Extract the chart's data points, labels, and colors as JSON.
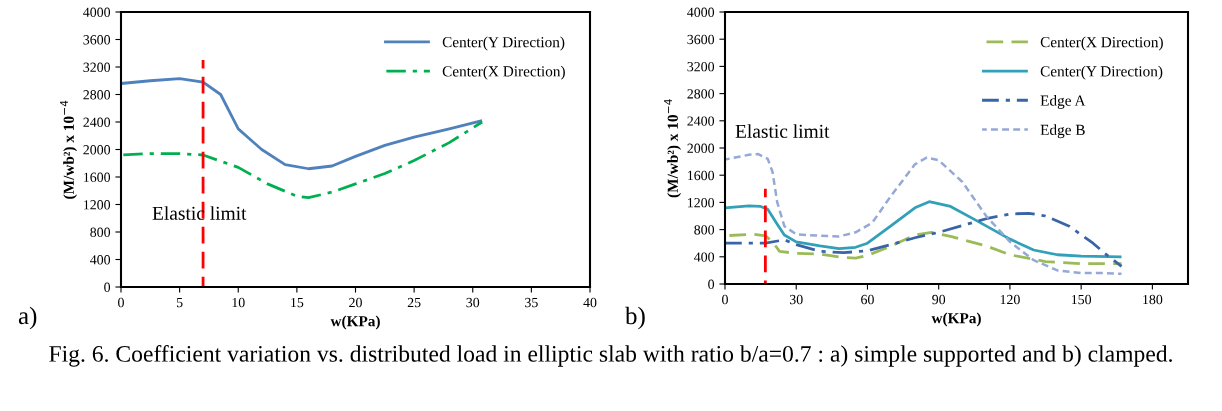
{
  "chart_data": [
    {
      "type": "line",
      "xlabel": "w(KPa)",
      "ylabel": "(M/wb²) x 10$^{−4}$",
      "xlim": [
        0,
        40
      ],
      "xticks": [
        0,
        5,
        10,
        15,
        20,
        25,
        30,
        35,
        40
      ],
      "ylim": [
        0,
        4000
      ],
      "yticks": [
        0,
        400,
        800,
        1200,
        1600,
        2000,
        2400,
        2800,
        3200,
        3600,
        4000
      ],
      "grid": false,
      "legend": "top right",
      "series": [
        {
          "name": "Center(Y Direction)",
          "color": "#4f81bd",
          "line_style": "solid",
          "x": [
            0,
            2.5,
            5,
            7,
            8.5,
            10,
            12,
            14,
            16,
            18,
            20,
            22.5,
            25,
            28,
            30.8
          ],
          "values": [
            2960,
            3000,
            3030,
            2980,
            2800,
            2300,
            2000,
            1780,
            1720,
            1760,
            1900,
            2060,
            2180,
            2300,
            2420
          ]
        },
        {
          "name": "Center(X Direction)",
          "color": "#00b050",
          "line_style": "dashdot",
          "x": [
            0,
            2.5,
            5,
            7,
            10,
            12.5,
            15,
            16,
            18,
            20,
            22.5,
            25,
            28,
            30.8
          ],
          "values": [
            1920,
            1940,
            1940,
            1920,
            1740,
            1500,
            1320,
            1300,
            1380,
            1500,
            1650,
            1840,
            2100,
            2400
          ]
        },
        {
          "color": "#ff0000",
          "line_style": "dashed",
          "x": [
            7,
            7
          ],
          "values": [
            0,
            3300
          ]
        }
      ],
      "annotations": [
        "Elastic limit",
        "a)"
      ]
    },
    {
      "type": "line",
      "xlabel": "w(KPa)",
      "ylabel": "(M/wb²) x 10$^{−4}$",
      "xlim": [
        0,
        195
      ],
      "xticks": [
        0,
        30,
        60,
        90,
        120,
        150,
        180
      ],
      "ylim": [
        0,
        4000
      ],
      "yticks": [
        0,
        400,
        800,
        1200,
        1600,
        2000,
        2400,
        2800,
        3200,
        3600,
        4000
      ],
      "grid": false,
      "legend": "top right",
      "series": [
        {
          "name": "Center(X Direction)",
          "color": "#9bbb59",
          "line_style": "dashed",
          "x": [
            0,
            12,
            17,
            20,
            23,
            30,
            40,
            50,
            55,
            60,
            70,
            80,
            87,
            95,
            110,
            120,
            135,
            150,
            167
          ],
          "values": [
            710,
            730,
            710,
            620,
            480,
            450,
            440,
            390,
            380,
            420,
            560,
            720,
            760,
            700,
            560,
            430,
            330,
            300,
            300
          ]
        },
        {
          "name": "Center(Y Direction)",
          "color": "#31a0b8",
          "line_style": "solid",
          "x": [
            0,
            10,
            15,
            18,
            22,
            25,
            30,
            40,
            48,
            55,
            60,
            70,
            80,
            86,
            95,
            105,
            120,
            130,
            140,
            150,
            167
          ],
          "values": [
            1120,
            1150,
            1140,
            1100,
            880,
            720,
            620,
            560,
            520,
            540,
            600,
            860,
            1120,
            1210,
            1140,
            950,
            660,
            500,
            430,
            410,
            400
          ]
        },
        {
          "name": "Edge A",
          "color": "#3a64a8",
          "line_style": "dashdot",
          "x": [
            0,
            10,
            17,
            25,
            30,
            40,
            50,
            60,
            70,
            80,
            90,
            100,
            110,
            120,
            128,
            135,
            145,
            155,
            160,
            167
          ],
          "values": [
            600,
            600,
            600,
            650,
            580,
            480,
            460,
            490,
            580,
            680,
            760,
            860,
            960,
            1030,
            1040,
            1000,
            850,
            600,
            450,
            260
          ]
        },
        {
          "name": "Edge B",
          "color": "#95a9d6",
          "line_style": "dotted",
          "x": [
            0,
            10,
            14,
            18,
            20,
            22,
            25,
            30,
            40,
            48,
            55,
            62,
            70,
            80,
            85,
            90,
            100,
            110,
            120,
            130,
            140,
            150,
            160,
            167
          ],
          "values": [
            1830,
            1900,
            1910,
            1840,
            1650,
            1200,
            850,
            730,
            710,
            700,
            760,
            900,
            1300,
            1760,
            1860,
            1820,
            1500,
            1000,
            620,
            350,
            200,
            160,
            160,
            150
          ]
        },
        {
          "color": "#ff0000",
          "line_style": "dashed",
          "x": [
            17,
            17
          ],
          "values": [
            0,
            1400
          ]
        }
      ],
      "annotations": [
        "Elastic limit",
        "b)",
        "Fig. 6. Coefficient variation vs. distributed load in elliptic slab with ratio b/a=0.7 : a) simple supported and b) clamped."
      ]
    }
  ]
}
